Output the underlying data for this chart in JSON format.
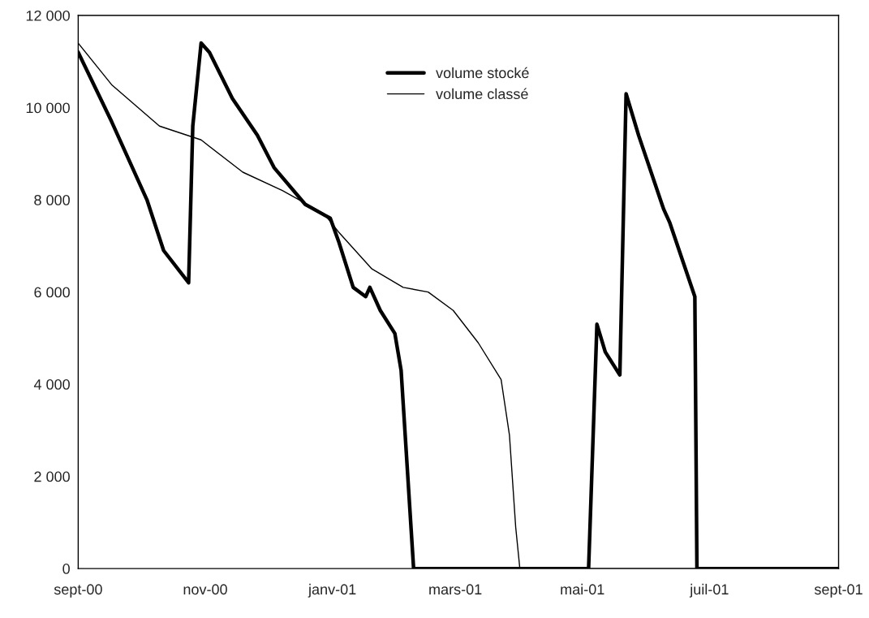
{
  "chart_data": {
    "type": "line",
    "grid": false,
    "legend": "top",
    "marker": "none",
    "line_style": "solid",
    "xlim": [
      "2000-09-01",
      "2001-09-01"
    ],
    "xticks": [
      {
        "value": "2000-09-01",
        "label": "sept-00"
      },
      {
        "value": "2000-11-01",
        "label": "nov-00"
      },
      {
        "value": "2001-01-01",
        "label": "janv-01"
      },
      {
        "value": "2001-03-01",
        "label": "mars-01"
      },
      {
        "value": "2001-05-01",
        "label": "mai-01"
      },
      {
        "value": "2001-07-01",
        "label": "juil-01"
      },
      {
        "value": "2001-09-01",
        "label": "sept-01"
      }
    ],
    "ylim": [
      0,
      12000
    ],
    "yticks": [
      {
        "value": 0,
        "label": "0"
      },
      {
        "value": 2000,
        "label": "2 000"
      },
      {
        "value": 4000,
        "label": "4 000"
      },
      {
        "value": 6000,
        "label": "6 000"
      },
      {
        "value": 8000,
        "label": "8 000"
      },
      {
        "value": 10000,
        "label": "10 000"
      },
      {
        "value": 12000,
        "label": "12 000"
      }
    ],
    "series": [
      {
        "name": "volume stocké",
        "color": "#000000",
        "x": [
          "2000-09-01",
          "2000-09-17",
          "2000-10-04",
          "2000-10-12",
          "2000-10-24",
          "2000-10-26",
          "2000-10-30",
          "2000-11-03",
          "2000-11-14",
          "2000-11-26",
          "2000-12-04",
          "2000-12-19",
          "2000-12-27",
          "2000-12-31",
          "2001-01-04",
          "2001-01-11",
          "2001-01-17",
          "2001-01-19",
          "2001-01-24",
          "2001-01-31",
          "2001-02-03",
          "2001-02-09",
          "2001-05-04",
          "2001-05-08",
          "2001-05-12",
          "2001-05-19",
          "2001-05-22",
          "2001-05-28",
          "2001-06-09",
          "2001-06-12",
          "2001-06-24",
          "2001-06-25",
          "2001-09-01"
        ],
        "values": [
          11200,
          9700,
          8000,
          6900,
          6200,
          9600,
          11400,
          11200,
          10200,
          9400,
          8700,
          7900,
          7700,
          7600,
          7100,
          6100,
          5900,
          6100,
          5600,
          5100,
          4300,
          0,
          0,
          5300,
          4700,
          4200,
          10300,
          9400,
          7800,
          7500,
          5900,
          0,
          0
        ]
      },
      {
        "name": "volume classé",
        "color": "#000000",
        "x": [
          "2000-09-01",
          "2000-09-17",
          "2000-10-10",
          "2000-10-30",
          "2000-11-19",
          "2000-12-08",
          "2000-12-28",
          "2001-01-04",
          "2001-01-20",
          "2001-02-04",
          "2001-02-16",
          "2001-02-28",
          "2001-03-12",
          "2001-03-23",
          "2001-03-27",
          "2001-03-30",
          "2001-04-01",
          "2001-09-01"
        ],
        "values": [
          11400,
          10500,
          9600,
          9300,
          8600,
          8200,
          7700,
          7300,
          6500,
          6100,
          6000,
          5600,
          4900,
          4100,
          2900,
          900,
          0,
          0
        ]
      }
    ]
  }
}
